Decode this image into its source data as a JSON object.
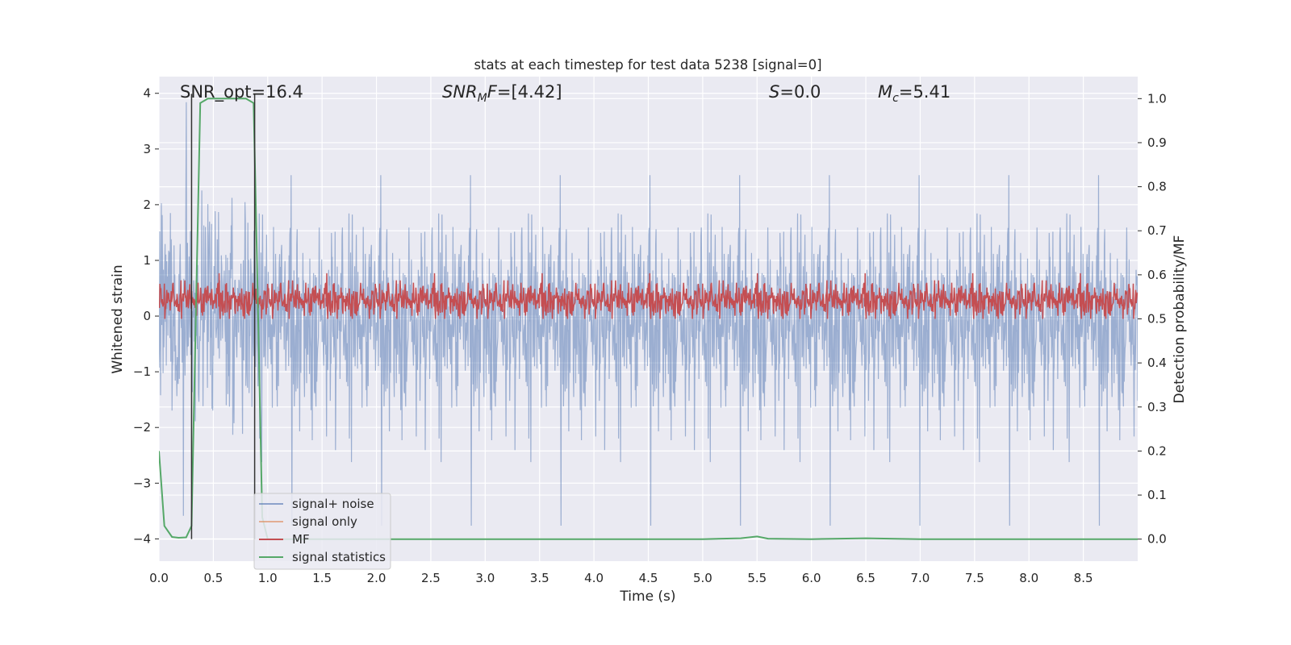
{
  "chart_data": {
    "type": "line",
    "title": "stats at each timestep for test data 5238 [signal=0]",
    "xlabel": "Time (s)",
    "ylabel": "Whitened strain",
    "y2label": "Detection probability/MF",
    "xlim": [
      0,
      9.0
    ],
    "ylim": [
      -4.4,
      4.3
    ],
    "y2lim": [
      -0.05,
      1.05
    ],
    "grid": true,
    "legend_position": "lower-left",
    "x_ticks": [
      "0.0",
      "0.5",
      "1.0",
      "1.5",
      "2.0",
      "2.5",
      "3.0",
      "3.5",
      "4.0",
      "4.5",
      "5.0",
      "5.5",
      "6.0",
      "6.5",
      "7.0",
      "7.5",
      "8.0",
      "8.5"
    ],
    "y_ticks": [
      "−4",
      "−3",
      "−2",
      "−1",
      "0",
      "1",
      "2",
      "3",
      "4"
    ],
    "y2_ticks": [
      "0.0",
      "0.1",
      "0.2",
      "0.3",
      "0.4",
      "0.5",
      "0.6",
      "0.7",
      "0.8",
      "0.9",
      "1.0"
    ],
    "annotations": {
      "snr_opt": "SNR_opt=16.4",
      "snr_mf": "[4.42]",
      "s_value": "0.0",
      "mc_value": "5.41"
    },
    "series": [
      {
        "name": "signal+ noise",
        "color": "#4c72b0",
        "axis": "left",
        "description_values": {
          "envelope_typical": [
            -2.0,
            2.2
          ],
          "spikes_max": 4.0,
          "spikes_min": -4.0
        }
      },
      {
        "name": "signal only",
        "color": "#dd8452",
        "axis": "left",
        "values": []
      },
      {
        "name": "MF",
        "color": "#c44e52",
        "axis": "right",
        "band": [
          0.5,
          0.6
        ],
        "peak": 0.63
      },
      {
        "name": "signal statistics",
        "color": "#55a868",
        "axis": "right",
        "x": [
          0.0,
          0.05,
          0.12,
          0.18,
          0.25,
          0.3,
          0.33,
          0.38,
          0.45,
          0.55,
          0.65,
          0.8,
          0.87,
          0.9,
          0.95,
          1.0,
          1.5,
          2.0,
          2.5,
          3.0,
          3.5,
          4.0,
          4.5,
          5.0,
          5.35,
          5.5,
          5.6,
          6.0,
          6.5,
          7.0,
          7.5,
          8.0,
          8.5,
          9.0
        ],
        "y": [
          0.2,
          0.03,
          0.005,
          0.003,
          0.004,
          0.03,
          0.4,
          0.99,
          1.0,
          1.0,
          1.0,
          1.0,
          0.99,
          0.65,
          0.05,
          0.0,
          0.0,
          0.0,
          0.0,
          0.0,
          0.0,
          0.0,
          0.0,
          0.0,
          0.002,
          0.006,
          0.001,
          0.0,
          0.002,
          0.0,
          0.0,
          0.0,
          0.0,
          0.0
        ]
      }
    ],
    "vertical_markers": [
      0.3,
      0.88
    ]
  }
}
